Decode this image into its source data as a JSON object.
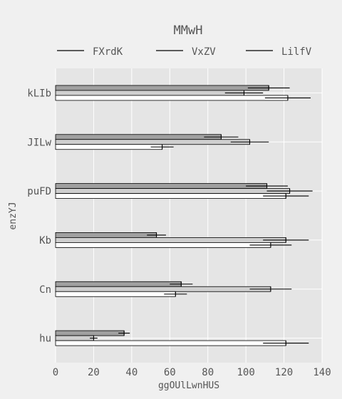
{
  "chart_data": {
    "type": "bar",
    "orientation": "horizontal",
    "title": "MMwH",
    "xlabel": "ggOUlLwnHUS",
    "ylabel": "enzYJ",
    "xlim": [
      0,
      140
    ],
    "xticks": [
      0,
      20,
      40,
      60,
      80,
      100,
      120,
      140
    ],
    "categories": [
      "kLIb",
      "JILw",
      "puFD",
      "Kb",
      "Cn",
      "hu"
    ],
    "legend_position": "top",
    "grid": true,
    "series": [
      {
        "name": "FXrdK",
        "color": "#a0a0a0",
        "values": [
          112,
          87,
          111,
          53,
          66,
          36
        ],
        "errors": [
          11,
          9,
          11,
          5,
          6,
          3
        ]
      },
      {
        "name": "VxZV",
        "color": "#cfcfcf",
        "values": [
          99,
          102,
          123,
          121,
          113,
          20
        ],
        "errors": [
          10,
          10,
          12,
          12,
          11,
          2
        ]
      },
      {
        "name": "LilfV",
        "color": "#ffffff",
        "values": [
          122,
          56,
          121,
          113,
          63,
          121
        ],
        "errors": [
          12,
          6,
          12,
          11,
          6,
          12
        ]
      }
    ]
  }
}
